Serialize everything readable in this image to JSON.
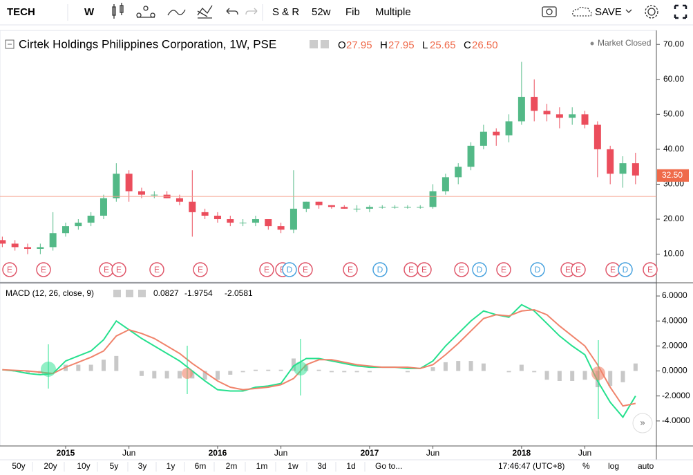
{
  "toolbar": {
    "symbol": "TECH",
    "interval": "W",
    "buttons": [
      "S & R",
      "52w",
      "Fib",
      "Multiple"
    ],
    "save": "SAVE"
  },
  "legend": {
    "title": "Cirtek Holdings Philippines Corporation, 1W, PSE",
    "o_label": "O",
    "open": 27.95,
    "h_label": "H",
    "high": 27.95,
    "l_label": "L",
    "low": 25.65,
    "c_label": "C",
    "close": {
      "value": 26.5,
      "label": "26.50"
    },
    "status": "Market Closed",
    "last_price": {
      "value": 32.5,
      "label": "32.50"
    }
  },
  "events": [
    "E",
    "E",
    "E",
    "E",
    "E",
    "E",
    "E",
    "E",
    "D",
    "E",
    "E",
    "D",
    "E",
    "E",
    "E",
    "D",
    "E",
    "D",
    "E",
    "E",
    "E",
    "D",
    "E"
  ],
  "chart_data": [
    {
      "type": "candlestick",
      "x": [
        "2014-08",
        "2014-09",
        "2014-10",
        "2014-11",
        "2014-12",
        "2015-01",
        "2015-02",
        "2015-03",
        "2015-04",
        "2015-05",
        "2015-06",
        "2015-07",
        "2015-08",
        "2015-09",
        "2015-10",
        "2015-11",
        "2015-12",
        "2016-01",
        "2016-02",
        "2016-03",
        "2016-04",
        "2016-05",
        "2016-06",
        "2016-07",
        "2016-08",
        "2016-09",
        "2016-10",
        "2016-11",
        "2016-12",
        "2017-01",
        "2017-02",
        "2017-03",
        "2017-04",
        "2017-05",
        "2017-06",
        "2017-07",
        "2017-08",
        "2017-09",
        "2017-10",
        "2017-11",
        "2017-12",
        "2018-01",
        "2018-02",
        "2018-03",
        "2018-04",
        "2018-05",
        "2018-06",
        "2018-07",
        "2018-08",
        "2018-09",
        "2018-10"
      ],
      "open": [
        14,
        13,
        12,
        11.5,
        12,
        16,
        18,
        19,
        21,
        26,
        33,
        28,
        27,
        27,
        26,
        25,
        22,
        21,
        20,
        19,
        19,
        20,
        18,
        17,
        23,
        25,
        24,
        23.5,
        23,
        23,
        23.5,
        23.5,
        23.5,
        23.5,
        23.5,
        28,
        32,
        35,
        41,
        45,
        44,
        48,
        55,
        51,
        50,
        49,
        50,
        47,
        40,
        33,
        36
      ],
      "high": [
        15,
        14,
        13,
        13,
        22,
        19,
        20,
        22,
        27,
        36,
        34,
        29,
        28,
        28,
        27,
        34,
        23,
        22,
        21,
        20,
        21,
        20,
        19,
        34,
        25,
        25,
        24,
        24,
        24,
        24,
        24,
        24,
        24,
        24,
        30,
        33,
        36,
        42,
        47,
        46,
        50,
        65,
        60,
        53,
        52,
        52,
        51,
        48,
        41,
        38,
        39
      ],
      "low": [
        12,
        11,
        10,
        10,
        11,
        15,
        17,
        18,
        20,
        25,
        25,
        26,
        26,
        26,
        24,
        15,
        20,
        19,
        18,
        18,
        18,
        17,
        16,
        16,
        22,
        23,
        23,
        23,
        22,
        22,
        23,
        23,
        23,
        23,
        23,
        27,
        30,
        34,
        40,
        41,
        42,
        47,
        48,
        48,
        46,
        47,
        46,
        32,
        30,
        29,
        30
      ],
      "close": [
        13,
        12,
        11.5,
        12,
        16,
        18,
        19,
        21,
        26,
        33,
        28,
        27,
        27,
        26,
        25,
        22,
        21,
        20,
        19,
        19,
        20,
        18,
        17,
        23,
        25,
        24,
        23.5,
        23,
        23,
        23.5,
        23.5,
        23.5,
        23.5,
        23.5,
        28,
        32,
        35,
        41,
        45,
        44,
        48,
        55,
        51,
        50,
        49,
        50,
        47,
        40,
        33,
        36,
        32.5
      ],
      "up_color": "#53b987",
      "down_color": "#eb4d5c",
      "ylim": [
        2,
        74
      ],
      "yticks": [
        {
          "value": 10,
          "label": "10.00"
        },
        {
          "value": 20,
          "label": "20.00"
        },
        {
          "value": 30,
          "label": "30.00"
        },
        {
          "value": 40,
          "label": "40.00"
        },
        {
          "value": 50,
          "label": "50.00"
        },
        {
          "value": 60,
          "label": "60.00"
        },
        {
          "value": 70,
          "label": "70.00"
        }
      ],
      "xticks": [
        {
          "value": "2015-01",
          "label": "2015"
        },
        {
          "value": "2015-06",
          "label": "Jun"
        },
        {
          "value": "2016-01",
          "label": "2016"
        },
        {
          "value": "2016-06",
          "label": "Jun"
        },
        {
          "value": "2017-01",
          "label": "2017"
        },
        {
          "value": "2017-06",
          "label": "Jun"
        },
        {
          "value": "2018-01",
          "label": "2018"
        },
        {
          "value": "2018-06",
          "label": "Jun"
        }
      ]
    },
    {
      "type": "macd",
      "title": "MACD (12, 26, close, 9)",
      "legend_values": [
        {
          "value": 0.0827,
          "color": "#999999"
        },
        {
          "value": -1.9754,
          "color": "#26d98a"
        },
        {
          "value": -2.0581,
          "color": "#f0836b"
        }
      ],
      "series": [
        {
          "kind": "bar",
          "color": "#c8c8c8",
          "values": [
            0,
            -0.05,
            -0.2,
            -0.2,
            0,
            0.5,
            0.5,
            0.5,
            0.9,
            1.2,
            0,
            -0.4,
            -0.6,
            -0.6,
            -0.6,
            -0.6,
            -0.7,
            -0.7,
            -0.3,
            -0.1,
            0.1,
            0.1,
            0.1,
            1.0,
            0.5,
            0.1,
            -0.1,
            -0.1,
            -0.1,
            -0.1,
            0,
            0,
            -0.1,
            0,
            0.3,
            0.7,
            0.8,
            0.8,
            0.6,
            0,
            -0.1,
            0.5,
            -0.1,
            -0.7,
            -0.8,
            -0.8,
            -0.7,
            -1.3,
            -1.2,
            -0.9,
            0.6
          ]
        },
        {
          "kind": "line",
          "color": "#26e08e",
          "values": [
            0.1,
            0.0,
            -0.2,
            -0.3,
            -0.2,
            0.8,
            1.2,
            1.6,
            2.5,
            4.0,
            3.3,
            2.6,
            2.0,
            1.4,
            0.8,
            0.0,
            -0.8,
            -1.5,
            -1.6,
            -1.6,
            -1.3,
            -1.2,
            -1.0,
            0.4,
            1.0,
            1.0,
            0.8,
            0.6,
            0.4,
            0.3,
            0.3,
            0.3,
            0.2,
            0.2,
            0.8,
            2.0,
            3.0,
            4.0,
            4.8,
            4.5,
            4.3,
            5.3,
            4.8,
            3.8,
            2.8,
            2.0,
            1.3,
            -0.8,
            -2.5,
            -3.7,
            -2.0
          ]
        },
        {
          "kind": "line",
          "color": "#f0836b",
          "values": [
            0.1,
            0.05,
            0.0,
            -0.1,
            -0.2,
            0.3,
            0.7,
            1.1,
            1.6,
            2.8,
            3.3,
            3.0,
            2.6,
            2.0,
            1.4,
            0.6,
            -0.1,
            -0.8,
            -1.3,
            -1.5,
            -1.4,
            -1.3,
            -1.1,
            -0.6,
            0.5,
            0.9,
            0.9,
            0.7,
            0.5,
            0.4,
            0.3,
            0.3,
            0.3,
            0.2,
            0.5,
            1.3,
            2.2,
            3.2,
            4.2,
            4.5,
            4.4,
            4.8,
            4.9,
            4.5,
            3.6,
            2.8,
            2.0,
            0.5,
            -1.3,
            -2.8,
            -2.6
          ]
        }
      ],
      "ylim": [
        -6,
        7
      ],
      "yticks": [
        {
          "value": -4,
          "label": "-4.0000"
        },
        {
          "value": -2,
          "label": "-2.0000"
        },
        {
          "value": 0,
          "label": "0.0000"
        },
        {
          "value": 2,
          "label": "2.0000"
        },
        {
          "value": 4,
          "label": "4.0000"
        },
        {
          "value": 6,
          "label": "6.0000"
        }
      ]
    }
  ],
  "bottom_bar": {
    "ranges": [
      "50y",
      "20y",
      "10y",
      "5y",
      "3y",
      "1y",
      "6m",
      "2m",
      "1m",
      "1w",
      "3d",
      "1d"
    ],
    "goto": "Go to...",
    "time": "17:46:47 (UTC+8)",
    "percent": "%",
    "log": "log",
    "auto": "auto"
  }
}
